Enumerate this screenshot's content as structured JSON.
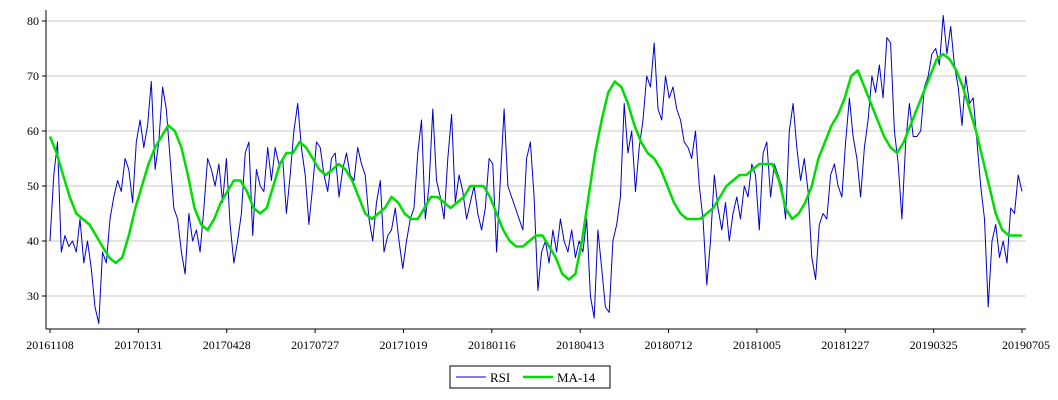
{
  "chart_data": {
    "type": "line",
    "x_labels": [
      "20161108",
      "20170131",
      "20170428",
      "20170727",
      "20171019",
      "20180116",
      "20180413",
      "20180712",
      "20181005",
      "20181227",
      "20190325",
      "20190705"
    ],
    "ylim": [
      24,
      82
    ],
    "yticks": [
      30,
      40,
      50,
      60,
      70,
      80
    ],
    "grid": "horizontal",
    "legend_position": "bottom-center",
    "series": [
      {
        "name": "RSI",
        "color": "#0000cc",
        "values": [
          40,
          52,
          58,
          38,
          41,
          39,
          40,
          38,
          44,
          36,
          40,
          35,
          28,
          25,
          38,
          36,
          44,
          48,
          51,
          49,
          55,
          53,
          47,
          58,
          62,
          57,
          61,
          69,
          53,
          58,
          68,
          64,
          55,
          46,
          44,
          38,
          34,
          45,
          40,
          42,
          38,
          46,
          55,
          53,
          50,
          54,
          47,
          55,
          43,
          36,
          40,
          45,
          56,
          58,
          41,
          53,
          50,
          49,
          57,
          51,
          57,
          54,
          55,
          45,
          52,
          60,
          65,
          57,
          52,
          43,
          50,
          58,
          57,
          52,
          49,
          55,
          56,
          48,
          53,
          56,
          52,
          51,
          57,
          54,
          52,
          44,
          40,
          47,
          51,
          38,
          41,
          42,
          46,
          40,
          35,
          40,
          44,
          46,
          56,
          62,
          44,
          50,
          64,
          51,
          48,
          44,
          55,
          63,
          47,
          52,
          49,
          44,
          47,
          50,
          45,
          42,
          46,
          55,
          54,
          38,
          51,
          64,
          50,
          48,
          46,
          44,
          42,
          55,
          58,
          48,
          31,
          38,
          40,
          36,
          42,
          38,
          44,
          40,
          38,
          42,
          37,
          40,
          38,
          44,
          30,
          26,
          42,
          35,
          28,
          27,
          40,
          43,
          48,
          65,
          56,
          60,
          49,
          57,
          62,
          70,
          68,
          76,
          64,
          62,
          70,
          66,
          68,
          64,
          62,
          58,
          57,
          55,
          60,
          50,
          44,
          32,
          40,
          52,
          46,
          42,
          47,
          40,
          45,
          48,
          44,
          50,
          48,
          54,
          52,
          42,
          56,
          58,
          48,
          54,
          52,
          50,
          44,
          60,
          65,
          57,
          51,
          55,
          49,
          37,
          33,
          43,
          45,
          44,
          52,
          54,
          50,
          48,
          58,
          66,
          59,
          55,
          48,
          57,
          62,
          70,
          67,
          72,
          66,
          77,
          76,
          60,
          54,
          44,
          58,
          65,
          59,
          59,
          60,
          68,
          70,
          74,
          75,
          72,
          81,
          74,
          79,
          72,
          68,
          61,
          70,
          65,
          66,
          58,
          50,
          44,
          28,
          40,
          43,
          37,
          40,
          36,
          46,
          45,
          52,
          49
        ]
      },
      {
        "name": "MA-14",
        "color": "#00dd00",
        "values": [
          59,
          56,
          52,
          48,
          45,
          44,
          43,
          41,
          39,
          37,
          36,
          37,
          41,
          46,
          50,
          54,
          57,
          59,
          61,
          60,
          57,
          52,
          46,
          43,
          42,
          44,
          47,
          49,
          51,
          51,
          49,
          46,
          45,
          46,
          50,
          54,
          56,
          56,
          58,
          57,
          55,
          53,
          52,
          53,
          54,
          53,
          51,
          48,
          45,
          44,
          45,
          46,
          48,
          47,
          45,
          44,
          44,
          46,
          48,
          48,
          47,
          46,
          47,
          48,
          50,
          50,
          50,
          48,
          45,
          42,
          40,
          39,
          39,
          40,
          41,
          41,
          39,
          37,
          34,
          33,
          34,
          40,
          48,
          56,
          62,
          67,
          69,
          68,
          65,
          61,
          58,
          56,
          55,
          53,
          50,
          47,
          45,
          44,
          44,
          44,
          45,
          46,
          48,
          50,
          51,
          52,
          52,
          53,
          54,
          54,
          54,
          51,
          46,
          44,
          45,
          47,
          50,
          55,
          58,
          61,
          63,
          66,
          70,
          71,
          68,
          65,
          62,
          59,
          57,
          56,
          58,
          61,
          64,
          67,
          70,
          73,
          74,
          73,
          71,
          68,
          64,
          60,
          55,
          50,
          45,
          42,
          41,
          41,
          41
        ]
      }
    ]
  }
}
